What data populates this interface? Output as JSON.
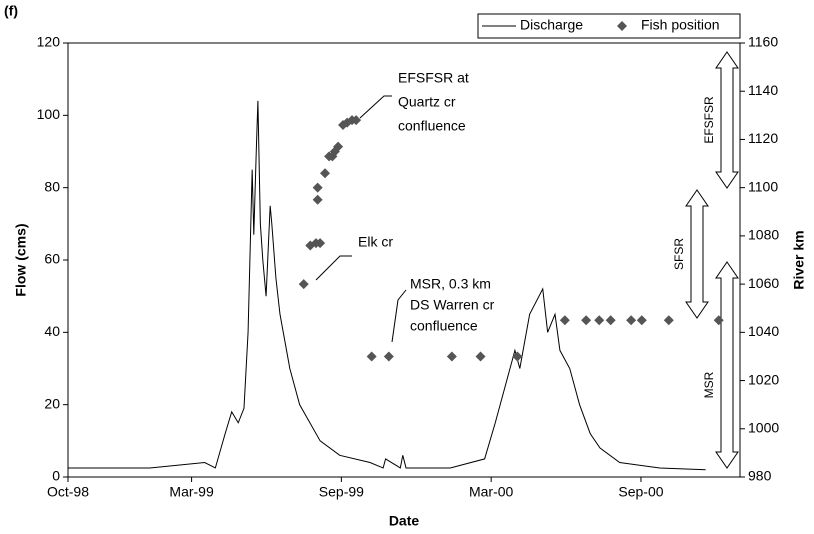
{
  "chart_data": {
    "type": "line",
    "title": "(f)",
    "x_label": "Date",
    "y_label": "Flow (cms)",
    "y2_label": "River km",
    "xlim": [
      0,
      821
    ],
    "xticks": [
      {
        "value": 0,
        "label": "Oct-98"
      },
      {
        "value": 151,
        "label": "Mar-99"
      },
      {
        "value": 334,
        "label": "Sep-99"
      },
      {
        "value": 517,
        "label": "Mar-00"
      },
      {
        "value": 700,
        "label": "Sep-00"
      }
    ],
    "ylim": [
      0,
      120
    ],
    "yticks": [
      0,
      20,
      40,
      60,
      80,
      100,
      120
    ],
    "y2lim": [
      980,
      1160
    ],
    "y2ticks": [
      980,
      1000,
      1020,
      1040,
      1060,
      1080,
      1100,
      1120,
      1140,
      1160
    ],
    "legend": "top-right",
    "series": [
      {
        "name": "Discharge",
        "color": "#000000",
        "marker": "none",
        "x": [
          0,
          100,
          167,
          180,
          192,
          200,
          208,
          215,
          220,
          225,
          227,
          230,
          232,
          235,
          238,
          242,
          247,
          249,
          254,
          259,
          271,
          283,
          308,
          332,
          369,
          385,
          388,
          406,
          409,
          413,
          467,
          509,
          522,
          534,
          546,
          552,
          564,
          580,
          586,
          595,
          601,
          613,
          625,
          638,
          650,
          674,
          723,
          779
        ],
        "values": [
          2.5,
          2.5,
          4,
          2.5,
          12,
          18,
          15,
          19,
          40,
          85,
          67,
          90,
          104,
          70,
          60,
          50,
          75,
          70,
          55,
          45,
          30,
          20,
          10,
          6,
          4,
          2.5,
          5,
          2.5,
          6,
          2.5,
          2.5,
          5,
          15,
          25,
          35,
          30,
          45,
          52,
          40,
          45,
          35,
          30,
          20,
          12,
          8,
          4,
          2.5,
          2
        ]
      },
      {
        "name": "Fish position",
        "color": "#555555",
        "marker": "diamond",
        "axis": "y2",
        "x": [
          288,
          296,
          303,
          308,
          305,
          305,
          314,
          319,
          323,
          326,
          330,
          336,
          341,
          347,
          352,
          371,
          392,
          469,
          504,
          549,
          607,
          633,
          649,
          663,
          688,
          701,
          734,
          795
        ],
        "values": [
          1060,
          1076,
          1077,
          1077,
          1095,
          1100,
          1106,
          1113,
          1113,
          1115,
          1117,
          1126,
          1127,
          1128,
          1128,
          1030,
          1030,
          1030,
          1030,
          1030,
          1045,
          1045,
          1045,
          1045,
          1045,
          1045,
          1045,
          1045
        ]
      }
    ],
    "annotations": [
      "EFSFSR at",
      "Quartz cr",
      "confluence",
      "Elk cr",
      "MSR, 0.3 km",
      "DS Warren cr",
      "confluence"
    ],
    "reach_labels": [
      "EFSFSR",
      "SFSR",
      "MSR"
    ]
  }
}
